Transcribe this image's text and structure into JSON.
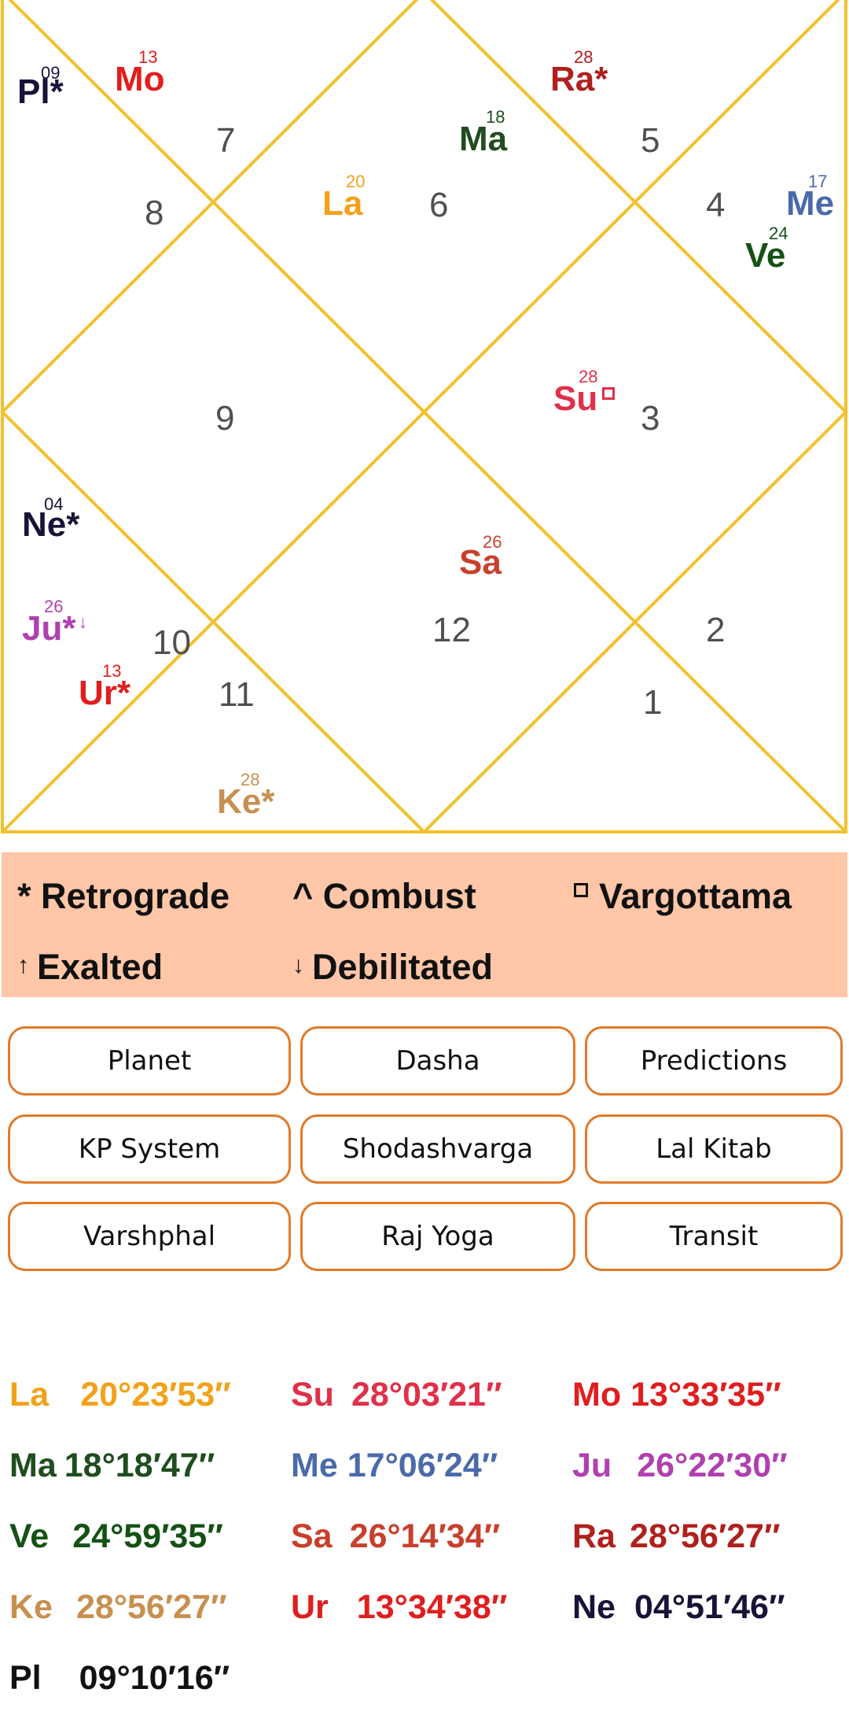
{
  "chart": {
    "line_color": "#f2c12e",
    "houses": [
      {
        "id": "1",
        "text": "1"
      },
      {
        "id": "2",
        "text": "2"
      },
      {
        "id": "3",
        "text": "3"
      },
      {
        "id": "4",
        "text": "4"
      },
      {
        "id": "5",
        "text": "5"
      },
      {
        "id": "6",
        "text": "6"
      },
      {
        "id": "7",
        "text": "7"
      },
      {
        "id": "8",
        "text": "8"
      },
      {
        "id": "9",
        "text": "9"
      },
      {
        "id": "10",
        "text": "10"
      },
      {
        "id": "11",
        "text": "11"
      },
      {
        "id": "12",
        "text": "12"
      }
    ],
    "planets": [
      {
        "id": "pl",
        "abbr": "Pl*",
        "deg": "09",
        "color": "#1a1238"
      },
      {
        "id": "mo",
        "abbr": "Mo",
        "deg": "13",
        "color": "#e01e1e"
      },
      {
        "id": "ra",
        "abbr": "Ra*",
        "deg": "28",
        "color": "#b0201c"
      },
      {
        "id": "ma",
        "abbr": "Ma",
        "deg": "18",
        "color": "#1f4d1f"
      },
      {
        "id": "la",
        "abbr": "La",
        "deg": "20",
        "color": "#f2a21a"
      },
      {
        "id": "me",
        "abbr": "Me",
        "deg": "17",
        "color": "#4a6aaa"
      },
      {
        "id": "ve",
        "abbr": "Ve",
        "deg": "24",
        "color": "#145214"
      },
      {
        "id": "su",
        "abbr": "Su",
        "deg": "28",
        "color": "#e0304a",
        "mark": "vargottama"
      },
      {
        "id": "ne",
        "abbr": "Ne*",
        "deg": "04",
        "color": "#1a1238"
      },
      {
        "id": "sa",
        "abbr": "Sa",
        "deg": "26",
        "color": "#c8402c"
      },
      {
        "id": "ju",
        "abbr": "Ju*",
        "deg": "26",
        "color": "#b040b0",
        "mark": "debilitated"
      },
      {
        "id": "ur",
        "abbr": "Ur*",
        "deg": "13",
        "color": "#e01e1e"
      },
      {
        "id": "ke",
        "abbr": "Ke*",
        "deg": "28",
        "color": "#c89050"
      }
    ]
  },
  "legend": {
    "retrograde": {
      "symbol": "*",
      "label": "Retrograde"
    },
    "combust": {
      "symbol": "^",
      "label": "Combust"
    },
    "vargottama": {
      "label": "Vargottama"
    },
    "exalted": {
      "symbol": "↑",
      "label": "Exalted"
    },
    "debilitated": {
      "symbol": "↓",
      "label": "Debilitated"
    },
    "background": "#ffc6a8"
  },
  "buttons": {
    "planet": "Planet",
    "dasha": "Dasha",
    "predictions": "Predictions",
    "kp_system": "KP System",
    "shodashvarga": "Shodashvarga",
    "lal_kitab": "Lal Kitab",
    "varshphal": "Varshphal",
    "raj_yoga": "Raj Yoga",
    "transit": "Transit",
    "border_color": "#e07a2a"
  },
  "degrees": [
    {
      "abbr": "La",
      "value": "20°23′53″",
      "color": "#f2a21a"
    },
    {
      "abbr": "Su",
      "value": "28°03′21″",
      "color": "#e0304a"
    },
    {
      "abbr": "Mo",
      "value": "13°33′35″",
      "color": "#e01e1e"
    },
    {
      "abbr": "Ma",
      "value": "18°18′47″",
      "color": "#1f4d1f"
    },
    {
      "abbr": "Me",
      "value": "17°06′24″",
      "color": "#4a6aaa"
    },
    {
      "abbr": "Ju",
      "value": "26°22′30″",
      "color": "#b040b0"
    },
    {
      "abbr": "Ve",
      "value": "24°59′35″",
      "color": "#145214"
    },
    {
      "abbr": "Sa",
      "value": "26°14′34″",
      "color": "#c8402c"
    },
    {
      "abbr": "Ra",
      "value": "28°56′27″",
      "color": "#b0201c"
    },
    {
      "abbr": "Ke",
      "value": "28°56′27″",
      "color": "#c89050"
    },
    {
      "abbr": "Ur",
      "value": "13°34′38″",
      "color": "#e01e1e"
    },
    {
      "abbr": "Ne",
      "value": "04°51′46″",
      "color": "#1a1238"
    },
    {
      "abbr": "Pl",
      "value": "09°10′16″",
      "color": "#111111"
    }
  ]
}
